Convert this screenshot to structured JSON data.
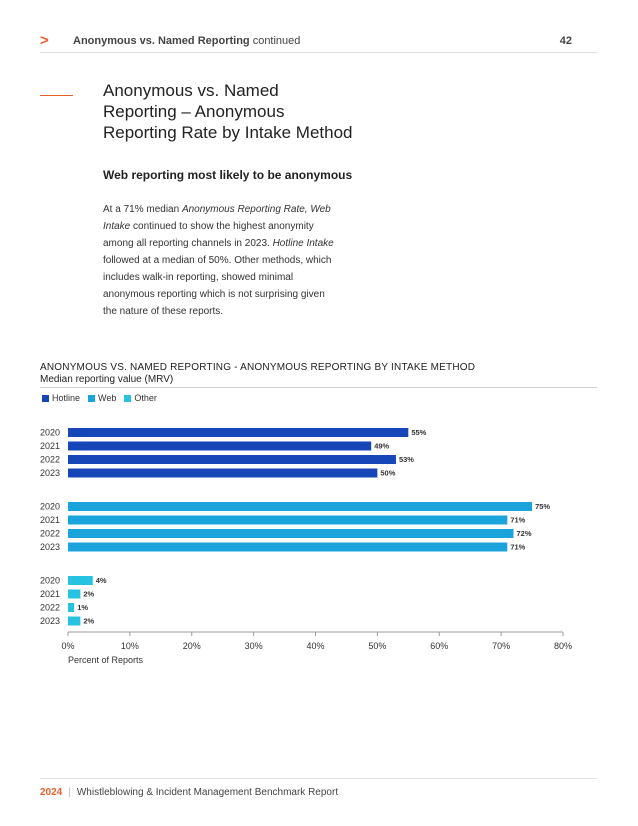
{
  "header": {
    "chevron": ">",
    "section_bold": "Anonymous vs. Named Reporting",
    "section_suffix": " continued",
    "page_number": "42"
  },
  "title": {
    "line1": "Anonymous vs. Named",
    "line2": "Reporting – Anonymous",
    "line3": "Reporting Rate by Intake Method"
  },
  "subheading": "Web reporting most likely to be anonymous",
  "body": {
    "t1": "At a 71% median ",
    "i1": "Anonymous Reporting Rate, Web Intake",
    "t2": " continued to show the highest anonymity among all reporting channels in 2023. ",
    "i2": "Hotline Intake",
    "t3": " followed at a median of 50%. Other methods, which includes walk-in reporting, showed minimal anonymous reporting which is not surprising given the nature of these reports."
  },
  "chart_data": {
    "type": "bar",
    "orientation": "horizontal",
    "title": "ANONYMOUS VS. NAMED REPORTING - ANONYMOUS REPORTING BY INTAKE METHOD",
    "subtitle": "Median reporting value (MRV)",
    "xlabel": "Percent of Reports",
    "xlim": [
      0,
      80
    ],
    "xticks": [
      "0%",
      "10%",
      "20%",
      "30%",
      "40%",
      "50%",
      "60%",
      "70%",
      "80%"
    ],
    "legend_position": "top-left",
    "categories": [
      "2020",
      "2021",
      "2022",
      "2023"
    ],
    "series": [
      {
        "name": "Hotline",
        "color": "#1746b8",
        "values": [
          55,
          49,
          53,
          50
        ]
      },
      {
        "name": "Web",
        "color": "#1ba3dc",
        "values": [
          75,
          71,
          72,
          71
        ]
      },
      {
        "name": "Other",
        "color": "#26c2e0",
        "values": [
          4,
          2,
          1,
          2
        ]
      }
    ]
  },
  "footer": {
    "year": "2024",
    "separator": "|",
    "title": "Whistleblowing & Incident Management Benchmark Report"
  }
}
